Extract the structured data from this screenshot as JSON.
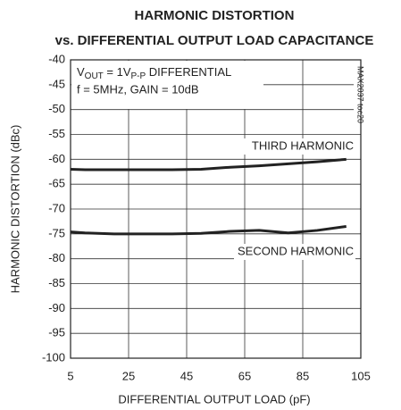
{
  "chart_data": {
    "type": "line",
    "title": "HARMONIC DISTORTION",
    "subtitle": "vs. DIFFERENTIAL OUTPUT LOAD CAPACITANCE",
    "x_label": "DIFFERENTIAL OUTPUT LOAD (pF)",
    "y_label": "HARMONIC DISTORTION (dBc)",
    "annotation_line1": [
      "V",
      "OUT",
      " = 1V",
      "P-P",
      " DIFFERENTIAL"
    ],
    "annotation_line2": "f = 5MHz, GAIN = 10dB",
    "figure_id": "MAX2037 toc20",
    "x": [
      5,
      10,
      20,
      30,
      40,
      50,
      60,
      70,
      80,
      90,
      100
    ],
    "series": [
      {
        "name": "THIRD HARMONIC",
        "color": "#222222",
        "values": [
          -62,
          -62.1,
          -62.1,
          -62.1,
          -62.1,
          -62,
          -61.6,
          -61.3,
          -60.9,
          -60.5,
          -60
        ]
      },
      {
        "name": "SECOND HARMONIC",
        "color": "#222222",
        "values": [
          -74.6,
          -74.8,
          -75,
          -75,
          -75,
          -74.9,
          -74.5,
          -74.3,
          -74.8,
          -74.3,
          -73.5
        ]
      }
    ],
    "xlim": [
      5,
      105
    ],
    "xticks": [
      5,
      25,
      45,
      65,
      85,
      105
    ],
    "ylim": [
      -100,
      -40
    ],
    "yticks": [
      -100,
      -95,
      -90,
      -85,
      -80,
      -75,
      -70,
      -65,
      -60,
      -55,
      -50,
      -45,
      -40
    ],
    "grid": true
  }
}
